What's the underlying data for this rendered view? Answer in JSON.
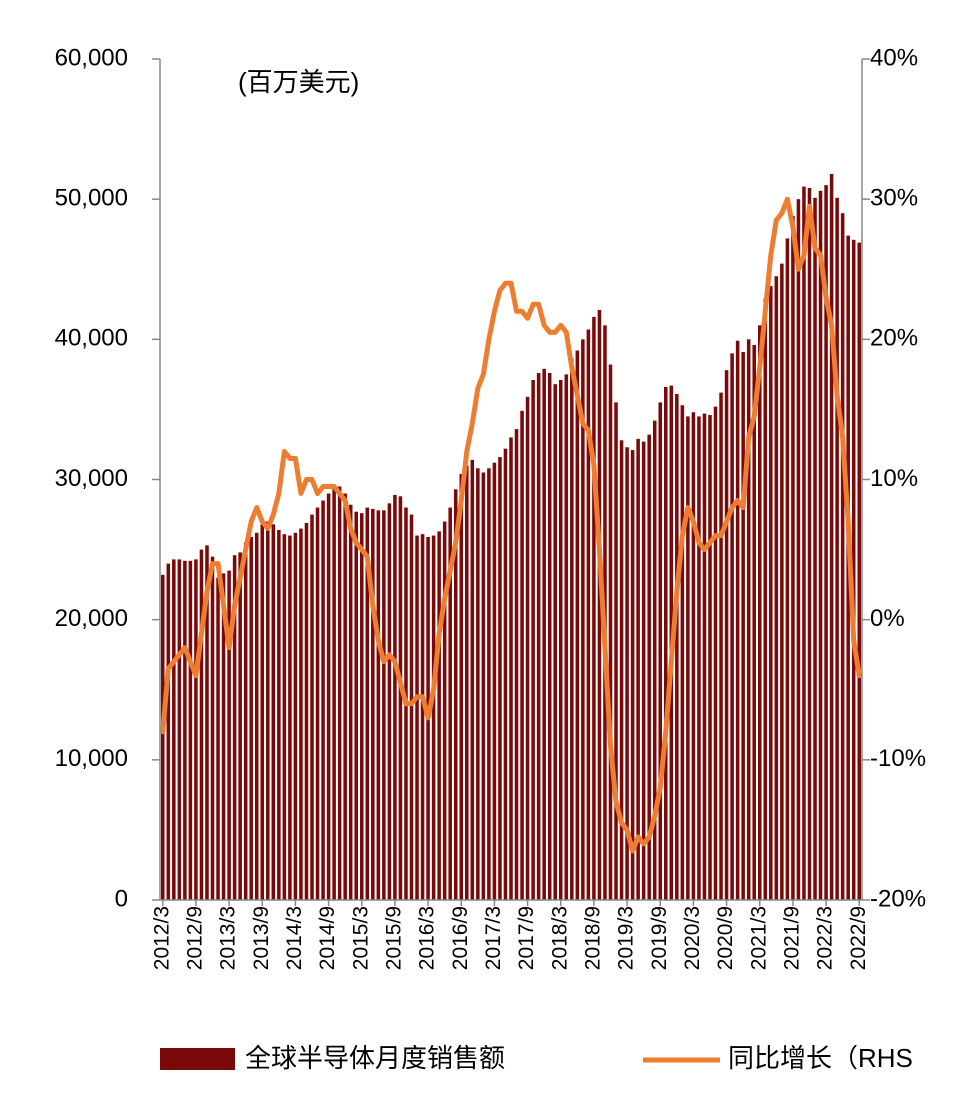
{
  "chart_data": {
    "type": "bar-line",
    "annotation": "(百万美元)",
    "categories": [
      "2012/3",
      null,
      null,
      null,
      null,
      null,
      "2012/9",
      null,
      null,
      null,
      null,
      null,
      "2013/3",
      null,
      null,
      null,
      null,
      null,
      "2013/9",
      null,
      null,
      null,
      null,
      null,
      "2014/3",
      null,
      null,
      null,
      null,
      null,
      "2014/9",
      null,
      null,
      null,
      null,
      null,
      "2015/3",
      null,
      null,
      null,
      null,
      null,
      "2015/9",
      null,
      null,
      null,
      null,
      null,
      "2016/3",
      null,
      null,
      null,
      null,
      null,
      "2016/9",
      null,
      null,
      null,
      null,
      null,
      "2017/3",
      null,
      null,
      null,
      null,
      null,
      "2017/9",
      null,
      null,
      null,
      null,
      null,
      "2018/3",
      null,
      null,
      null,
      null,
      null,
      "2018/9",
      null,
      null,
      null,
      null,
      null,
      "2019/3",
      null,
      null,
      null,
      null,
      null,
      "2019/9",
      null,
      null,
      null,
      null,
      null,
      "2020/3",
      null,
      null,
      null,
      null,
      null,
      "2020/9",
      null,
      null,
      null,
      null,
      null,
      "2021/3",
      null,
      null,
      null,
      null,
      null,
      "2021/9",
      null,
      null,
      null,
      null,
      null,
      "2022/3",
      null,
      null,
      null,
      null,
      null,
      "2022/9"
    ],
    "series": [
      {
        "name": "全球半导体月度销售额",
        "color": "#7a0a0a",
        "values": [
          23200,
          24000,
          24300,
          24300,
          24200,
          24200,
          24300,
          25000,
          25300,
          24500,
          23000,
          23300,
          23500,
          24600,
          24800,
          25500,
          25900,
          26200,
          26800,
          27000,
          26800,
          26400,
          26100,
          26000,
          26200,
          26500,
          26900,
          27500,
          28000,
          28500,
          29000,
          29500,
          29500,
          29000,
          28200,
          27700,
          27600,
          28000,
          27900,
          27800,
          27800,
          28300,
          28900,
          28800,
          28000,
          27500,
          26000,
          26100,
          25900,
          26000,
          26300,
          27000,
          28000,
          29300,
          30400,
          31000,
          31400,
          30800,
          30500,
          30800,
          31200,
          31600,
          32200,
          33000,
          33600,
          34900,
          35900,
          37100,
          37600,
          37900,
          37600,
          36800,
          37100,
          37500,
          38600,
          39200,
          40000,
          40700,
          41600,
          42100,
          41000,
          38200,
          35500,
          32800,
          32300,
          32100,
          32900,
          32700,
          33200,
          34200,
          35500,
          36600,
          36700,
          36100,
          35300,
          34500,
          34800,
          34500,
          34700,
          34600,
          35200,
          36200,
          37800,
          39000,
          39900,
          39100,
          40000,
          39600,
          41000,
          42900,
          43800,
          44500,
          45400,
          47200,
          48800,
          50000,
          50900,
          50800,
          50100,
          50600,
          51000,
          51800,
          50100,
          49000,
          47400,
          47100,
          46900
        ]
      },
      {
        "name": "同比增长（RHS",
        "color": "#ed7d31",
        "axis": "y2",
        "values": [
          -8,
          -3.5,
          -3,
          -2.5,
          -2,
          -3,
          -4,
          -1,
          2,
          4,
          4,
          1,
          -2,
          1,
          3,
          5,
          7,
          8,
          7,
          6.5,
          7.5,
          9,
          12,
          11.5,
          11.5,
          9,
          10,
          10,
          9,
          9.5,
          9.5,
          9.5,
          9,
          8.5,
          6.5,
          5.5,
          5,
          4.5,
          1,
          -1.5,
          -3,
          -2.5,
          -3,
          -4.5,
          -6,
          -6,
          -5.5,
          -5.5,
          -7,
          -5,
          -1,
          1.5,
          3.5,
          5.5,
          8.5,
          12,
          14,
          16.5,
          17.5,
          20,
          22,
          23.5,
          24,
          24,
          22,
          22,
          21.5,
          22.5,
          22.5,
          21,
          20.5,
          20.5,
          21,
          20.5,
          18,
          16,
          14,
          13.5,
          11,
          5,
          -2,
          -9,
          -13,
          -14.5,
          -15,
          -16.5,
          -15.5,
          -16,
          -15.5,
          -14,
          -12,
          -8,
          -3,
          2,
          6,
          8,
          7,
          5.5,
          5,
          5.5,
          6,
          6,
          7,
          8,
          8.5,
          8,
          13,
          14.5,
          18,
          22,
          26,
          28.5,
          29,
          30,
          28,
          25,
          26,
          29.5,
          26.5,
          26,
          23,
          21,
          16,
          13,
          7,
          -1.5,
          -4
        ]
      }
    ],
    "ylim": [
      0,
      60000
    ],
    "yticks": [
      0,
      {
        "value": 10000,
        "label": "10,000"
      },
      {
        "value": 20000,
        "label": "20,000"
      },
      {
        "value": 30000,
        "label": "30,000"
      },
      {
        "value": 40000,
        "label": "40,000"
      },
      {
        "value": 50000,
        "label": "50,000"
      },
      {
        "value": 60000,
        "label": "60,000"
      }
    ],
    "y2lim": [
      -20,
      40
    ],
    "y2ticks": [
      {
        "value": -20,
        "label": "-20%"
      },
      {
        "value": -10,
        "label": "-10%"
      },
      {
        "value": 0,
        "label": "0%"
      },
      {
        "value": 10,
        "label": "10%"
      },
      {
        "value": 20,
        "label": "20%"
      },
      {
        "value": 30,
        "label": "30%"
      },
      {
        "value": 40,
        "label": "40%"
      }
    ]
  }
}
